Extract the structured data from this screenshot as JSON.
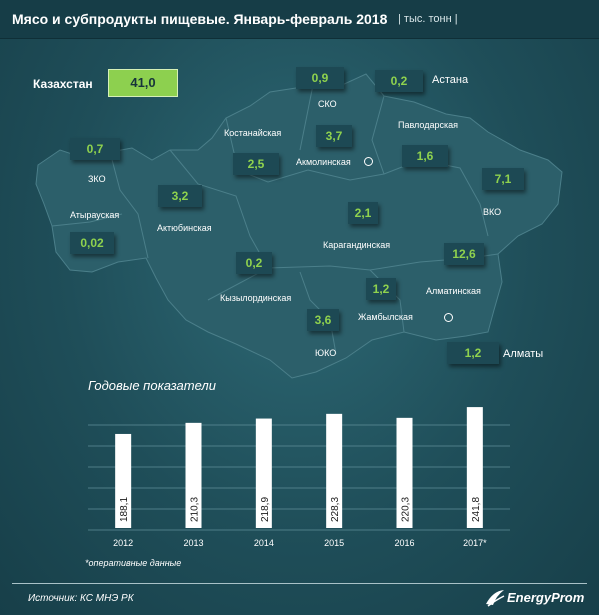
{
  "header": {
    "title": "Мясо и субпродукты пищевые. Январь-февраль 2018",
    "unit": "| тыс. тонн |"
  },
  "total": {
    "label": "Казахстан",
    "value": "41,0"
  },
  "regions": [
    {
      "name": "ЗКО",
      "value": "0,7"
    },
    {
      "name": "Атырауская",
      "value": "0,02"
    },
    {
      "name": "Актюбинская",
      "value": "3,2"
    },
    {
      "name": "Костанайская",
      "value": "2,5"
    },
    {
      "name": "СКО",
      "value": "0,9"
    },
    {
      "name": "Акмолинская",
      "value": "3,7"
    },
    {
      "name": "Астана",
      "value": "0,2"
    },
    {
      "name": "Павлодарская",
      "value": "1,6"
    },
    {
      "name": "ВКО",
      "value": "7,1"
    },
    {
      "name": "Карагандинская",
      "value": "2,1"
    },
    {
      "name": "Кызылординская",
      "value": "0,2"
    },
    {
      "name": "Алматинская",
      "value": "12,6"
    },
    {
      "name": "Жамбылская",
      "value": "1,2"
    },
    {
      "name": "ЮКО",
      "value": "3,6"
    },
    {
      "name": "Алматы",
      "value": "1,2"
    }
  ],
  "colors": {
    "accent": "#8dd04f",
    "value_text": "#8fd24e",
    "background": "#1f4e59",
    "bars": "#ffffff"
  },
  "chart_data": {
    "type": "bar",
    "title": "Годовые показатели",
    "categories": [
      "2012",
      "2013",
      "2014",
      "2015",
      "2016",
      "2017*"
    ],
    "values": [
      188.1,
      210.3,
      218.9,
      228.3,
      220.3,
      241.8
    ],
    "value_labels": [
      "188,1",
      "210,3",
      "218,9",
      "228,3",
      "220,3",
      "241,8"
    ],
    "ylim": [
      0,
      250
    ],
    "grid": true
  },
  "footnote": "*оперативные данные",
  "footer": {
    "source": "Источник: КС МНЭ РК",
    "brand": "EnergyProm"
  }
}
